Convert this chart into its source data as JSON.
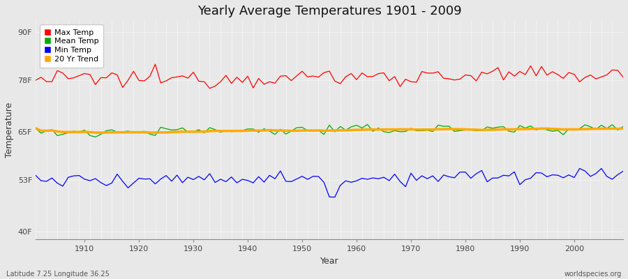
{
  "title": "Yearly Average Temperatures 1901 - 2009",
  "xlabel": "Year",
  "ylabel": "Temperature",
  "x_start": 1901,
  "x_end": 2009,
  "y_ticks": [
    40,
    53,
    65,
    78,
    90
  ],
  "y_tick_labels": [
    "40F",
    "53F",
    "65F",
    "78F",
    "90F"
  ],
  "ylim": [
    38,
    93
  ],
  "xlim": [
    1901,
    2009
  ],
  "bg_color": "#e8e8e8",
  "plot_bg_color": "#e8e8e8",
  "grid_color": "#ffffff",
  "max_temp_color": "#ff0000",
  "mean_temp_color": "#00aa00",
  "min_temp_color": "#0000ff",
  "trend_color": "#ffaa00",
  "max_temp_base": 78.2,
  "mean_temp_base": 65.0,
  "min_temp_base": 53.0,
  "subtitle_left": "Latitude 7.25 Longitude 36.25",
  "subtitle_right": "worldspecies.org",
  "legend_labels": [
    "Max Temp",
    "Mean Temp",
    "Min Temp",
    "20 Yr Trend"
  ],
  "max_noise_std": 1.1,
  "mean_noise_std": 0.6,
  "min_noise_std": 0.9,
  "max_trend_total": 1.2,
  "mean_trend_total": 1.0,
  "min_trend_total": 1.0
}
